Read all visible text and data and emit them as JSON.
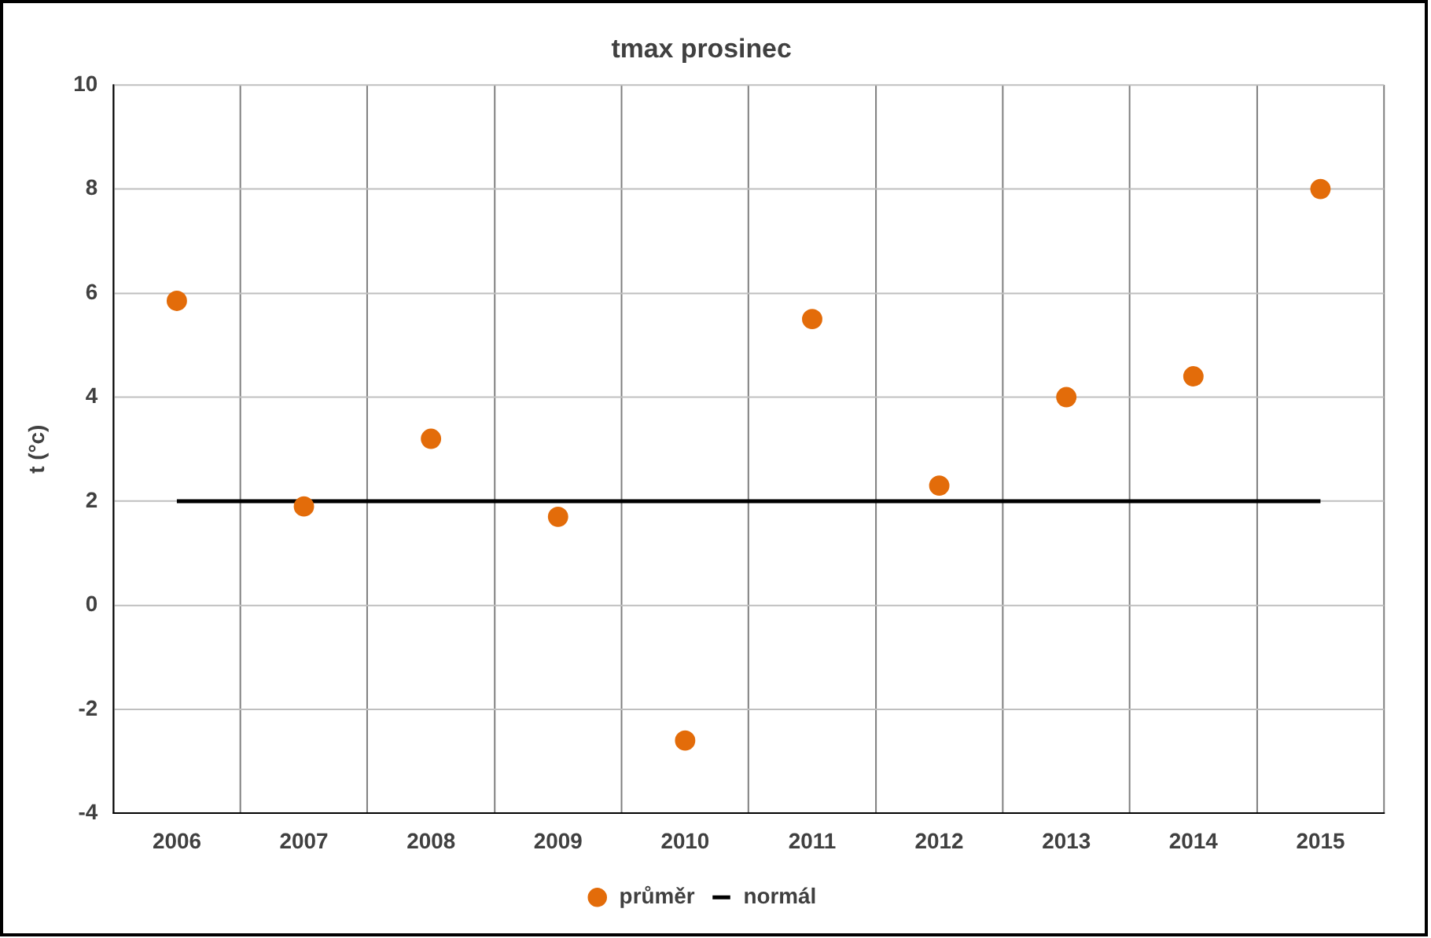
{
  "chart_data": {
    "type": "scatter",
    "title": "tmax prosinec",
    "ylabel": "t (°c)",
    "categories": [
      "2006",
      "2007",
      "2008",
      "2009",
      "2010",
      "2011",
      "2012",
      "2013",
      "2014",
      "2015"
    ],
    "series": [
      {
        "name": "průměr",
        "marker": "circle",
        "color": "#e36c0a",
        "values": [
          5.85,
          1.9,
          3.2,
          1.7,
          -2.6,
          5.5,
          2.3,
          4.0,
          4.4,
          8.0
        ]
      },
      {
        "name": "normál",
        "type": "line",
        "marker": "none",
        "color": "#000000",
        "values": [
          2.0,
          2.0,
          2.0,
          2.0,
          2.0,
          2.0,
          2.0,
          2.0,
          2.0,
          2.0
        ]
      }
    ],
    "ylim": [
      -4,
      10
    ],
    "yticks": [
      -4,
      -2,
      0,
      2,
      4,
      6,
      8,
      10
    ],
    "grid": true,
    "legend": "bottom"
  }
}
